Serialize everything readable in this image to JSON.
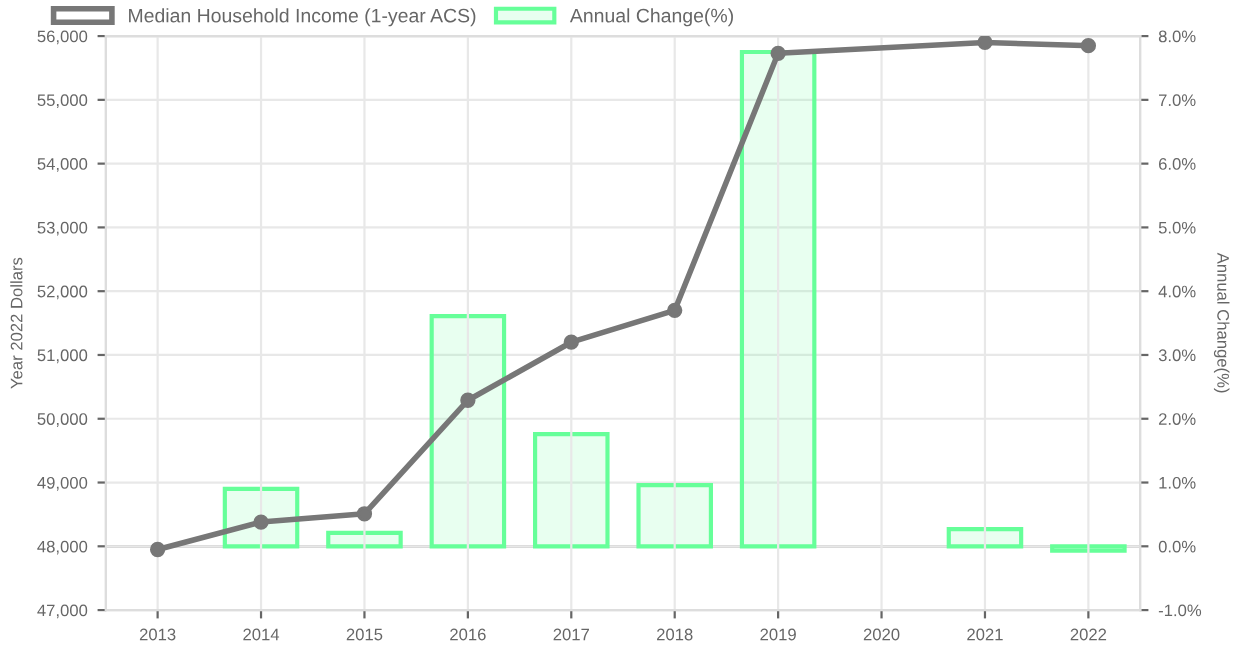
{
  "chart_data": {
    "type": "bar",
    "categories": [
      "2013",
      "2014",
      "2015",
      "2016",
      "2017",
      "2018",
      "2019",
      "2020",
      "2021",
      "2022"
    ],
    "ylabel": "Year 2022 Dollars",
    "y2label": "Annual Change(%)",
    "series": [
      {
        "name": "Median Household Income (1-year ACS)",
        "type": "line",
        "color": "#777777",
        "values": [
          47950,
          48380,
          48510,
          50290,
          51200,
          51700,
          55730,
          null,
          55900,
          55850
        ]
      },
      {
        "name": "Annual Change(%)",
        "axis": "y2",
        "color": "#66ff99",
        "values": [
          null,
          0.9,
          0.21,
          3.61,
          1.76,
          0.96,
          7.75,
          null,
          0.27,
          -0.07
        ]
      }
    ],
    "ylim": [
      47000,
      56000
    ],
    "yticks": [
      {
        "value": 47000,
        "label": "47,000"
      },
      {
        "value": 48000,
        "label": "48,000"
      },
      {
        "value": 49000,
        "label": "49,000"
      },
      {
        "value": 50000,
        "label": "50,000"
      },
      {
        "value": 51000,
        "label": "51,000"
      },
      {
        "value": 52000,
        "label": "52,000"
      },
      {
        "value": 53000,
        "label": "53,000"
      },
      {
        "value": 54000,
        "label": "54,000"
      },
      {
        "value": 55000,
        "label": "55,000"
      },
      {
        "value": 56000,
        "label": "56,000"
      }
    ],
    "y2lim": [
      -1,
      8
    ],
    "y2ticks": [
      {
        "value": -1,
        "label": "-1.0%"
      },
      {
        "value": 0,
        "label": "0.0%"
      },
      {
        "value": 1,
        "label": "1.0%"
      },
      {
        "value": 2,
        "label": "2.0%"
      },
      {
        "value": 3,
        "label": "3.0%"
      },
      {
        "value": 4,
        "label": "4.0%"
      },
      {
        "value": 5,
        "label": "5.0%"
      },
      {
        "value": 6,
        "label": "6.0%"
      },
      {
        "value": 7,
        "label": "7.0%"
      },
      {
        "value": 8,
        "label": "8.0%"
      }
    ],
    "grid": true,
    "legend": "top left",
    "marker": "circle"
  }
}
